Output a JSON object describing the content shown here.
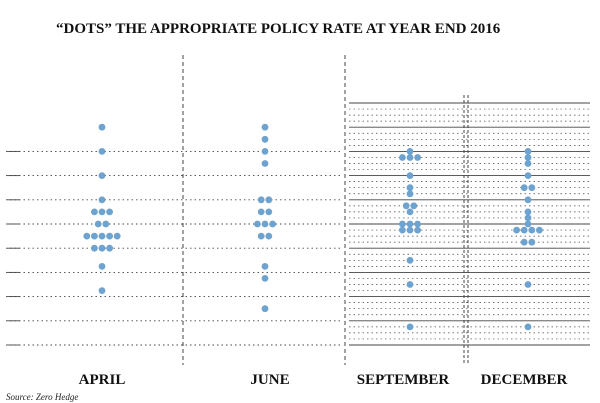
{
  "chart_data": {
    "type": "scatter",
    "title": "“DOTS”  THE APPROPRIATE POLICY RATE AT YEAR END 2016",
    "source": "Source: Zero Hedge",
    "categories": [
      "APRIL",
      "JUNE",
      "SEPTEMBER",
      "DECEMBER"
    ],
    "y_scale": "policy rate level index (unlabeled gridlines, 0.125 steps in later panels)",
    "panels": [
      {
        "name": "APRIL",
        "dots": [
          {
            "level": 9,
            "count": 1
          },
          {
            "level": 8,
            "count": 1
          },
          {
            "level": 7,
            "count": 1
          },
          {
            "level": 6,
            "count": 1
          },
          {
            "level": 5.5,
            "count": 3
          },
          {
            "level": 5,
            "count": 2
          },
          {
            "level": 4.5,
            "count": 5
          },
          {
            "level": 4,
            "count": 3
          },
          {
            "level": 3.25,
            "count": 1
          },
          {
            "level": 2.25,
            "count": 1
          }
        ]
      },
      {
        "name": "JUNE",
        "dots": [
          {
            "level": 9,
            "count": 1
          },
          {
            "level": 8.5,
            "count": 1
          },
          {
            "level": 8,
            "count": 1
          },
          {
            "level": 7.5,
            "count": 1
          },
          {
            "level": 6,
            "count": 2
          },
          {
            "level": 5.5,
            "count": 2
          },
          {
            "level": 5,
            "count": 3
          },
          {
            "level": 4.5,
            "count": 2
          },
          {
            "level": 3.25,
            "count": 1
          },
          {
            "level": 2.75,
            "count": 1
          },
          {
            "level": 1.5,
            "count": 1
          }
        ]
      },
      {
        "name": "SEPTEMBER",
        "dots": [
          {
            "level": 8,
            "count": 1
          },
          {
            "level": 7.75,
            "count": 3
          },
          {
            "level": 7,
            "count": 1
          },
          {
            "level": 6.5,
            "count": 1
          },
          {
            "level": 6.25,
            "count": 1
          },
          {
            "level": 5.75,
            "count": 2
          },
          {
            "level": 5.5,
            "count": 1
          },
          {
            "level": 5,
            "count": 3
          },
          {
            "level": 4.75,
            "count": 3
          },
          {
            "level": 3.5,
            "count": 1
          },
          {
            "level": 2.5,
            "count": 1
          },
          {
            "level": 0.75,
            "count": 1
          }
        ]
      },
      {
        "name": "DECEMBER",
        "dots": [
          {
            "level": 8,
            "count": 1
          },
          {
            "level": 7.75,
            "count": 1
          },
          {
            "level": 7.5,
            "count": 1
          },
          {
            "level": 7,
            "count": 1
          },
          {
            "level": 6.5,
            "count": 2
          },
          {
            "level": 6,
            "count": 1
          },
          {
            "level": 5.5,
            "count": 1
          },
          {
            "level": 5.25,
            "count": 1
          },
          {
            "level": 5,
            "count": 1
          },
          {
            "level": 4.75,
            "count": 4
          },
          {
            "level": 4.25,
            "count": 2
          },
          {
            "level": 2.5,
            "count": 1
          },
          {
            "level": 0.75,
            "count": 1
          }
        ]
      }
    ],
    "grid": true,
    "colors": {
      "dot": "#6ea3cf",
      "grid": "#444444",
      "text": "#111111"
    }
  }
}
